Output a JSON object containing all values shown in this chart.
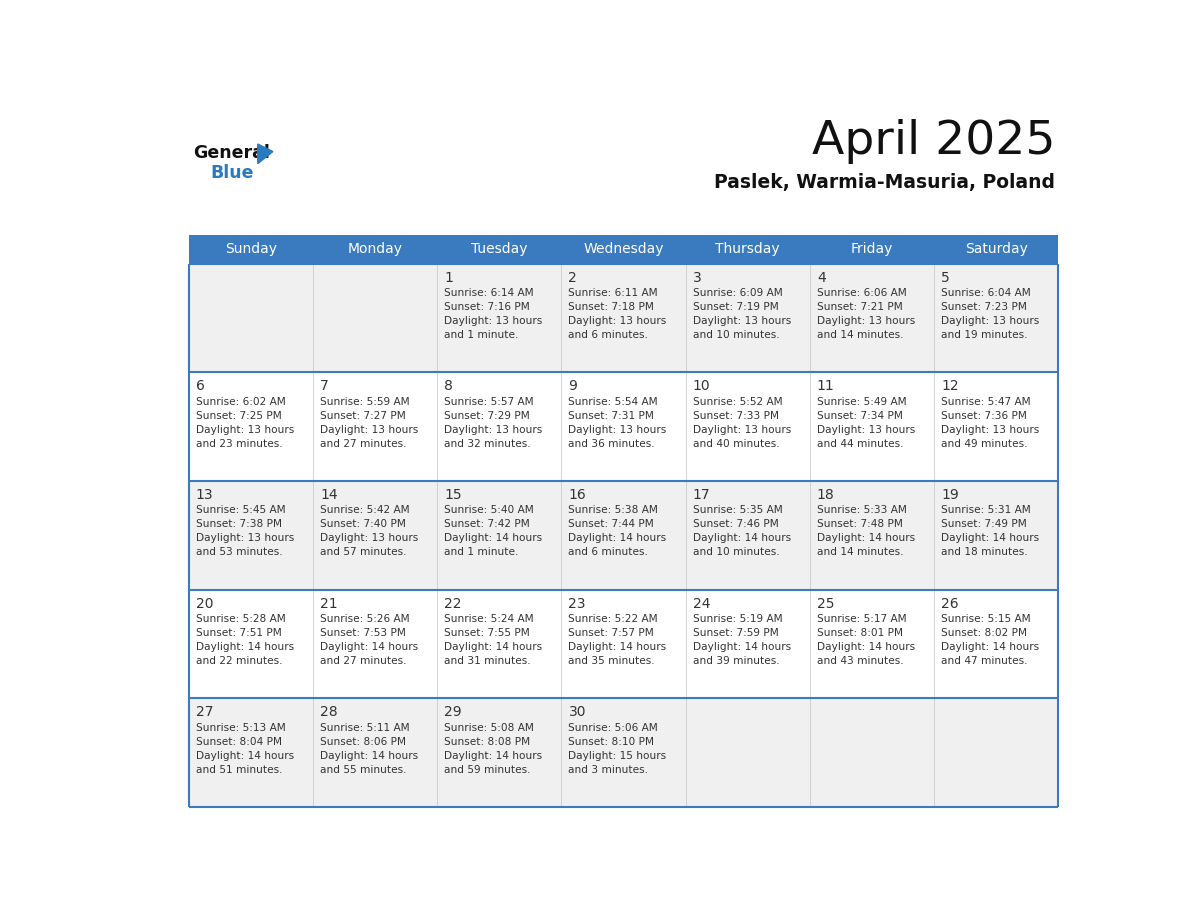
{
  "title": "April 2025",
  "subtitle": "Paslek, Warmia-Masuria, Poland",
  "days_of_week": [
    "Sunday",
    "Monday",
    "Tuesday",
    "Wednesday",
    "Thursday",
    "Friday",
    "Saturday"
  ],
  "header_bg_color": "#3a7bbf",
  "header_text_color": "#ffffff",
  "row_colors": [
    "#f0f0f0",
    "#ffffff",
    "#f0f0f0",
    "#ffffff",
    "#f0f0f0"
  ],
  "day_number_color": "#333333",
  "info_text_color": "#333333",
  "row_border_color": "#3a7bbf",
  "col_border_color": "#cccccc",
  "title_color": "#111111",
  "subtitle_color": "#111111",
  "logo_general_color": "#111111",
  "logo_blue_color": "#2a7abf",
  "calendar_data": [
    [
      {
        "day": null,
        "info": ""
      },
      {
        "day": null,
        "info": ""
      },
      {
        "day": 1,
        "info": "Sunrise: 6:14 AM\nSunset: 7:16 PM\nDaylight: 13 hours\nand 1 minute."
      },
      {
        "day": 2,
        "info": "Sunrise: 6:11 AM\nSunset: 7:18 PM\nDaylight: 13 hours\nand 6 minutes."
      },
      {
        "day": 3,
        "info": "Sunrise: 6:09 AM\nSunset: 7:19 PM\nDaylight: 13 hours\nand 10 minutes."
      },
      {
        "day": 4,
        "info": "Sunrise: 6:06 AM\nSunset: 7:21 PM\nDaylight: 13 hours\nand 14 minutes."
      },
      {
        "day": 5,
        "info": "Sunrise: 6:04 AM\nSunset: 7:23 PM\nDaylight: 13 hours\nand 19 minutes."
      }
    ],
    [
      {
        "day": 6,
        "info": "Sunrise: 6:02 AM\nSunset: 7:25 PM\nDaylight: 13 hours\nand 23 minutes."
      },
      {
        "day": 7,
        "info": "Sunrise: 5:59 AM\nSunset: 7:27 PM\nDaylight: 13 hours\nand 27 minutes."
      },
      {
        "day": 8,
        "info": "Sunrise: 5:57 AM\nSunset: 7:29 PM\nDaylight: 13 hours\nand 32 minutes."
      },
      {
        "day": 9,
        "info": "Sunrise: 5:54 AM\nSunset: 7:31 PM\nDaylight: 13 hours\nand 36 minutes."
      },
      {
        "day": 10,
        "info": "Sunrise: 5:52 AM\nSunset: 7:33 PM\nDaylight: 13 hours\nand 40 minutes."
      },
      {
        "day": 11,
        "info": "Sunrise: 5:49 AM\nSunset: 7:34 PM\nDaylight: 13 hours\nand 44 minutes."
      },
      {
        "day": 12,
        "info": "Sunrise: 5:47 AM\nSunset: 7:36 PM\nDaylight: 13 hours\nand 49 minutes."
      }
    ],
    [
      {
        "day": 13,
        "info": "Sunrise: 5:45 AM\nSunset: 7:38 PM\nDaylight: 13 hours\nand 53 minutes."
      },
      {
        "day": 14,
        "info": "Sunrise: 5:42 AM\nSunset: 7:40 PM\nDaylight: 13 hours\nand 57 minutes."
      },
      {
        "day": 15,
        "info": "Sunrise: 5:40 AM\nSunset: 7:42 PM\nDaylight: 14 hours\nand 1 minute."
      },
      {
        "day": 16,
        "info": "Sunrise: 5:38 AM\nSunset: 7:44 PM\nDaylight: 14 hours\nand 6 minutes."
      },
      {
        "day": 17,
        "info": "Sunrise: 5:35 AM\nSunset: 7:46 PM\nDaylight: 14 hours\nand 10 minutes."
      },
      {
        "day": 18,
        "info": "Sunrise: 5:33 AM\nSunset: 7:48 PM\nDaylight: 14 hours\nand 14 minutes."
      },
      {
        "day": 19,
        "info": "Sunrise: 5:31 AM\nSunset: 7:49 PM\nDaylight: 14 hours\nand 18 minutes."
      }
    ],
    [
      {
        "day": 20,
        "info": "Sunrise: 5:28 AM\nSunset: 7:51 PM\nDaylight: 14 hours\nand 22 minutes."
      },
      {
        "day": 21,
        "info": "Sunrise: 5:26 AM\nSunset: 7:53 PM\nDaylight: 14 hours\nand 27 minutes."
      },
      {
        "day": 22,
        "info": "Sunrise: 5:24 AM\nSunset: 7:55 PM\nDaylight: 14 hours\nand 31 minutes."
      },
      {
        "day": 23,
        "info": "Sunrise: 5:22 AM\nSunset: 7:57 PM\nDaylight: 14 hours\nand 35 minutes."
      },
      {
        "day": 24,
        "info": "Sunrise: 5:19 AM\nSunset: 7:59 PM\nDaylight: 14 hours\nand 39 minutes."
      },
      {
        "day": 25,
        "info": "Sunrise: 5:17 AM\nSunset: 8:01 PM\nDaylight: 14 hours\nand 43 minutes."
      },
      {
        "day": 26,
        "info": "Sunrise: 5:15 AM\nSunset: 8:02 PM\nDaylight: 14 hours\nand 47 minutes."
      }
    ],
    [
      {
        "day": 27,
        "info": "Sunrise: 5:13 AM\nSunset: 8:04 PM\nDaylight: 14 hours\nand 51 minutes."
      },
      {
        "day": 28,
        "info": "Sunrise: 5:11 AM\nSunset: 8:06 PM\nDaylight: 14 hours\nand 55 minutes."
      },
      {
        "day": 29,
        "info": "Sunrise: 5:08 AM\nSunset: 8:08 PM\nDaylight: 14 hours\nand 59 minutes."
      },
      {
        "day": 30,
        "info": "Sunrise: 5:06 AM\nSunset: 8:10 PM\nDaylight: 15 hours\nand 3 minutes."
      },
      {
        "day": null,
        "info": ""
      },
      {
        "day": null,
        "info": ""
      },
      {
        "day": null,
        "info": ""
      }
    ]
  ]
}
